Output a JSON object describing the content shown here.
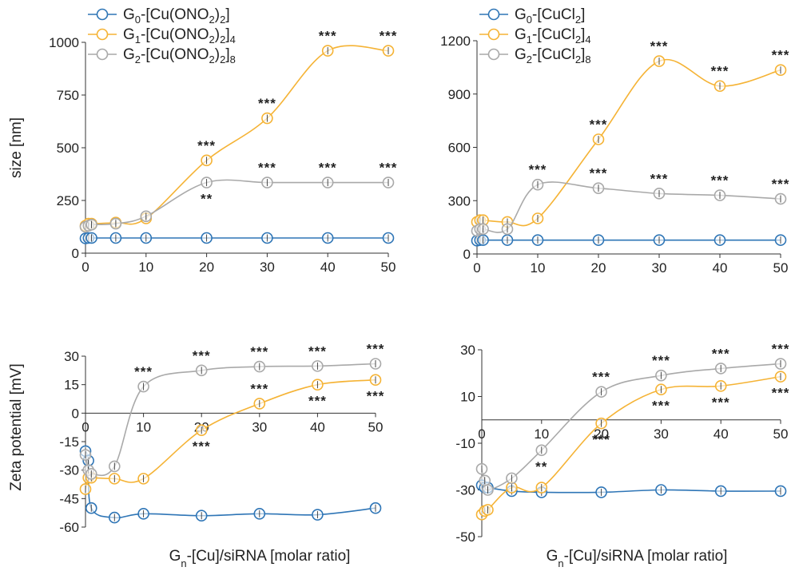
{
  "colors": {
    "g0": "#2e75b6",
    "g1": "#f5b335",
    "g2": "#a9a9a9"
  },
  "labels": {
    "size_ylabel": "size [nm]",
    "zeta_ylabel": "Zeta potential [mV]",
    "xlabel_left": "Gn-[Cu]/siRNA [molar ratio]",
    "xlabel_right": "Gn-[Cu]/siRNA [molar ratio]"
  },
  "chart_data": [
    {
      "type": "line",
      "panel": "top-left",
      "ylabel": "size [nm]",
      "xlim": [
        0,
        50
      ],
      "ylim": [
        0,
        1000
      ],
      "xticks": [
        0,
        10,
        20,
        30,
        40,
        50
      ],
      "yticks": [
        0,
        250,
        500,
        750,
        1000
      ],
      "legend_position": "top-left",
      "series": [
        {
          "name": "G0-[Cu(ONO2)2]",
          "legend": {
            "main": "G",
            "sub": "0",
            "rest": "-[Cu(ONO",
            "sub2": "2",
            "rest2": ")",
            "sub3": "2",
            "rest3": "]"
          },
          "color_key": "g0",
          "points": [
            [
              0,
              70
            ],
            [
              0.5,
              72
            ],
            [
              1,
              72
            ],
            [
              5,
              72
            ],
            [
              10,
              72
            ],
            [
              20,
              72
            ],
            [
              30,
              72
            ],
            [
              40,
              72
            ],
            [
              50,
              72
            ]
          ]
        },
        {
          "name": "G1-[Cu(ONO2)2]4",
          "legend": {
            "main": "G",
            "sub": "1",
            "rest": "-[Cu(ONO",
            "sub2": "2",
            "rest2": ")",
            "sub3": "2",
            "rest3": "]",
            "sub4": "4"
          },
          "color_key": "g1",
          "points": [
            [
              0,
              130
            ],
            [
              0.5,
              140
            ],
            [
              1,
              140
            ],
            [
              5,
              145
            ],
            [
              10,
              165
            ],
            [
              20,
              440
            ],
            [
              30,
              640
            ],
            [
              40,
              960
            ],
            [
              50,
              960
            ]
          ]
        },
        {
          "name": "G2-[Cu(ONO2)2]8",
          "legend": {
            "main": "G",
            "sub": "2",
            "rest": "-[Cu(ONO",
            "sub2": "2",
            "rest2": ")",
            "sub3": "2",
            "rest3": "]",
            "sub4": "8"
          },
          "color_key": "g2",
          "points": [
            [
              0,
              125
            ],
            [
              0.5,
              130
            ],
            [
              1,
              135
            ],
            [
              5,
              140
            ],
            [
              10,
              175
            ],
            [
              20,
              335
            ],
            [
              30,
              335
            ],
            [
              40,
              335
            ],
            [
              50,
              335
            ]
          ]
        }
      ],
      "annotations": [
        {
          "x": 20,
          "y": 440,
          "text": "***",
          "pos": "above"
        },
        {
          "x": 20,
          "y": 335,
          "text": "**",
          "pos": "below"
        },
        {
          "x": 30,
          "y": 640,
          "text": "***",
          "pos": "above"
        },
        {
          "x": 30,
          "y": 335,
          "text": "***",
          "pos": "above"
        },
        {
          "x": 40,
          "y": 960,
          "text": "***",
          "pos": "above"
        },
        {
          "x": 40,
          "y": 335,
          "text": "***",
          "pos": "above"
        },
        {
          "x": 50,
          "y": 960,
          "text": "***",
          "pos": "above"
        },
        {
          "x": 50,
          "y": 335,
          "text": "***",
          "pos": "above"
        }
      ]
    },
    {
      "type": "line",
      "panel": "top-right",
      "ylabel": "",
      "xlim": [
        0,
        50
      ],
      "ylim": [
        0,
        1200
      ],
      "xticks": [
        0,
        10,
        20,
        30,
        40,
        50
      ],
      "yticks": [
        0,
        300,
        600,
        900,
        1200
      ],
      "legend_position": "top-left",
      "series": [
        {
          "name": "G0-[CuCl2]",
          "legend": {
            "main": "G",
            "sub": "0",
            "rest": "-[CuCl",
            "sub2": "2",
            "rest2": "]"
          },
          "color_key": "g0",
          "points": [
            [
              0,
              75
            ],
            [
              0.5,
              78
            ],
            [
              1,
              78
            ],
            [
              5,
              78
            ],
            [
              10,
              78
            ],
            [
              20,
              78
            ],
            [
              30,
              78
            ],
            [
              40,
              78
            ],
            [
              50,
              78
            ]
          ]
        },
        {
          "name": "G1-[CuCl2]4",
          "legend": {
            "main": "G",
            "sub": "1",
            "rest": "-[CuCl",
            "sub2": "2",
            "rest2": "]",
            "sub3": "4"
          },
          "color_key": "g1",
          "points": [
            [
              0,
              180
            ],
            [
              0.5,
              190
            ],
            [
              1,
              190
            ],
            [
              5,
              180
            ],
            [
              10,
              200
            ],
            [
              20,
              645
            ],
            [
              30,
              1085
            ],
            [
              40,
              945
            ],
            [
              50,
              1035
            ]
          ]
        },
        {
          "name": "G2-[CuCl2]8",
          "legend": {
            "main": "G",
            "sub": "2",
            "rest": "-[CuCl",
            "sub2": "2",
            "rest2": "]",
            "sub3": "8"
          },
          "color_key": "g2",
          "points": [
            [
              0,
              130
            ],
            [
              0.5,
              140
            ],
            [
              1,
              140
            ],
            [
              5,
              140
            ],
            [
              10,
              390
            ],
            [
              20,
              370
            ],
            [
              30,
              340
            ],
            [
              40,
              330
            ],
            [
              50,
              310
            ]
          ]
        }
      ],
      "annotations": [
        {
          "x": 10,
          "y": 390,
          "text": "***",
          "pos": "above"
        },
        {
          "x": 20,
          "y": 645,
          "text": "***",
          "pos": "above"
        },
        {
          "x": 20,
          "y": 370,
          "text": "***",
          "pos": "above"
        },
        {
          "x": 30,
          "y": 1085,
          "text": "***",
          "pos": "above"
        },
        {
          "x": 30,
          "y": 340,
          "text": "***",
          "pos": "above"
        },
        {
          "x": 40,
          "y": 945,
          "text": "***",
          "pos": "above"
        },
        {
          "x": 40,
          "y": 330,
          "text": "***",
          "pos": "above"
        },
        {
          "x": 50,
          "y": 1035,
          "text": "***",
          "pos": "above"
        },
        {
          "x": 50,
          "y": 310,
          "text": "***",
          "pos": "above"
        }
      ]
    },
    {
      "type": "line",
      "panel": "bottom-left",
      "ylabel": "Zeta potential [mV]",
      "xlabel": "Gn-[Cu]/siRNA [molar ratio]",
      "xlim": [
        0,
        50
      ],
      "ylim": [
        -60,
        30
      ],
      "xticks": [
        0,
        10,
        20,
        30,
        40,
        50
      ],
      "yticks": [
        -60,
        -45,
        -30,
        -15,
        0,
        15,
        30
      ],
      "x_axis_at_zero": true,
      "series": [
        {
          "name": "G0-[Cu(ONO2)2]",
          "color_key": "g0",
          "points": [
            [
              0,
              -20
            ],
            [
              0.5,
              -25
            ],
            [
              1,
              -50
            ],
            [
              5,
              -55
            ],
            [
              10,
              -53
            ],
            [
              20,
              -54
            ],
            [
              30,
              -53
            ],
            [
              40,
              -53.5
            ],
            [
              50,
              -50
            ]
          ]
        },
        {
          "name": "G1-[Cu(ONO2)2]4",
          "color_key": "g1",
          "points": [
            [
              0,
              -40
            ],
            [
              0.5,
              -34
            ],
            [
              1,
              -34
            ],
            [
              5,
              -34.5
            ],
            [
              10,
              -34.5
            ],
            [
              20,
              -9
            ],
            [
              30,
              5
            ],
            [
              40,
              15
            ],
            [
              50,
              17.5
            ]
          ]
        },
        {
          "name": "G2-[Cu(ONO2)2]8",
          "color_key": "g2",
          "points": [
            [
              0,
              -22
            ],
            [
              0.5,
              -30
            ],
            [
              1,
              -32
            ],
            [
              5,
              -28
            ],
            [
              10,
              14
            ],
            [
              20,
              22.5
            ],
            [
              30,
              24.5
            ],
            [
              40,
              24.8
            ],
            [
              50,
              26
            ]
          ]
        }
      ],
      "annotations": [
        {
          "x": 10,
          "y": 14,
          "text": "***",
          "pos": "above"
        },
        {
          "x": 20,
          "y": 22.5,
          "text": "***",
          "pos": "above"
        },
        {
          "x": 20,
          "y": -9,
          "text": "***",
          "pos": "below"
        },
        {
          "x": 30,
          "y": 24.5,
          "text": "***",
          "pos": "above"
        },
        {
          "x": 30,
          "y": 5,
          "text": "***",
          "pos": "above"
        },
        {
          "x": 40,
          "y": 24.8,
          "text": "***",
          "pos": "above"
        },
        {
          "x": 40,
          "y": 15,
          "text": "***",
          "pos": "below"
        },
        {
          "x": 50,
          "y": 26,
          "text": "***",
          "pos": "above"
        },
        {
          "x": 50,
          "y": 17.5,
          "text": "***",
          "pos": "below"
        }
      ]
    },
    {
      "type": "line",
      "panel": "bottom-right",
      "ylabel": "",
      "xlabel": "Gn-[Cu]/siRNA [molar ratio]",
      "xlim": [
        0,
        50
      ],
      "ylim": [
        -50,
        30
      ],
      "xticks": [
        0,
        10,
        20,
        30,
        40,
        50
      ],
      "yticks": [
        -50,
        -30,
        -10,
        10,
        30
      ],
      "x_axis_at_zero": true,
      "series": [
        {
          "name": "G0-[CuCl2]",
          "color_key": "g0",
          "points": [
            [
              0,
              -28
            ],
            [
              0.5,
              -29
            ],
            [
              1,
              -29
            ],
            [
              5,
              -30.5
            ],
            [
              10,
              -31
            ],
            [
              20,
              -31
            ],
            [
              30,
              -30
            ],
            [
              40,
              -30.5
            ],
            [
              50,
              -30.5
            ]
          ]
        },
        {
          "name": "G1-[CuCl2]4",
          "color_key": "g1",
          "points": [
            [
              0,
              -40.5
            ],
            [
              0.5,
              -39
            ],
            [
              1,
              -38.5
            ],
            [
              5,
              -29
            ],
            [
              10,
              -29
            ],
            [
              20,
              -1.5
            ],
            [
              30,
              13
            ],
            [
              40,
              14.5
            ],
            [
              50,
              18.5
            ]
          ]
        },
        {
          "name": "G2-[CuCl2]8",
          "color_key": "g2",
          "points": [
            [
              0,
              -21
            ],
            [
              0.5,
              -26
            ],
            [
              1,
              -30
            ],
            [
              5,
              -25
            ],
            [
              10,
              -13
            ],
            [
              20,
              12
            ],
            [
              30,
              19
            ],
            [
              40,
              22
            ],
            [
              50,
              24
            ]
          ]
        }
      ],
      "annotations": [
        {
          "x": 10,
          "y": -13,
          "text": "**",
          "pos": "below"
        },
        {
          "x": 20,
          "y": 12,
          "text": "***",
          "pos": "above"
        },
        {
          "x": 20,
          "y": -1.5,
          "text": "***",
          "pos": "below"
        },
        {
          "x": 30,
          "y": 19,
          "text": "***",
          "pos": "above"
        },
        {
          "x": 30,
          "y": 13,
          "text": "***",
          "pos": "below"
        },
        {
          "x": 40,
          "y": 22,
          "text": "***",
          "pos": "above"
        },
        {
          "x": 40,
          "y": 14.5,
          "text": "***",
          "pos": "below"
        },
        {
          "x": 50,
          "y": 24,
          "text": "***",
          "pos": "above"
        },
        {
          "x": 50,
          "y": 18.5,
          "text": "***",
          "pos": "below"
        }
      ]
    }
  ]
}
